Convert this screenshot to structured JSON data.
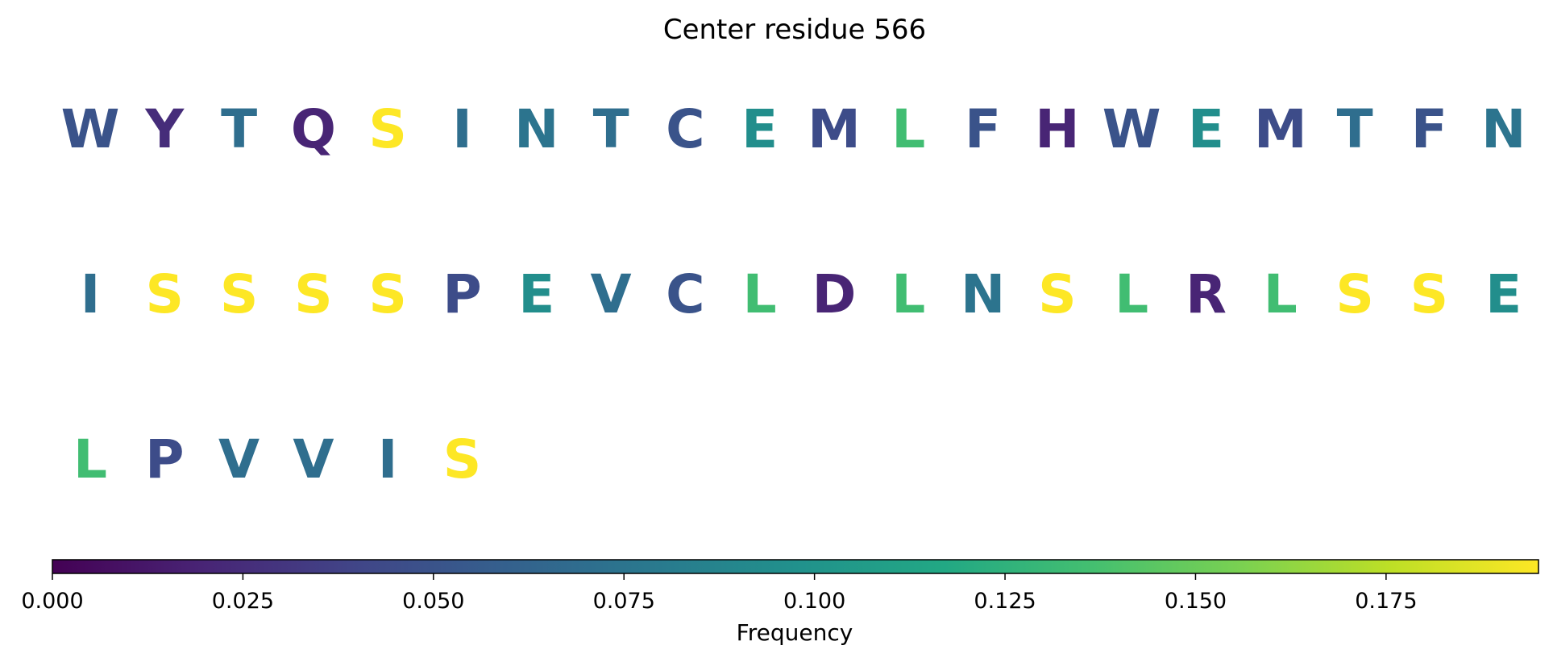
{
  "chart_data": {
    "type": "table",
    "title": "Center residue 566",
    "residues_per_row": 20,
    "residues": [
      {
        "letter": "W",
        "frequency": 0.05
      },
      {
        "letter": "Y",
        "frequency": 0.025
      },
      {
        "letter": "T",
        "frequency": 0.07
      },
      {
        "letter": "Q",
        "frequency": 0.02
      },
      {
        "letter": "S",
        "frequency": 0.195
      },
      {
        "letter": "I",
        "frequency": 0.07
      },
      {
        "letter": "N",
        "frequency": 0.075
      },
      {
        "letter": "T",
        "frequency": 0.07
      },
      {
        "letter": "C",
        "frequency": 0.05
      },
      {
        "letter": "E",
        "frequency": 0.095
      },
      {
        "letter": "M",
        "frequency": 0.045
      },
      {
        "letter": "L",
        "frequency": 0.135
      },
      {
        "letter": "F",
        "frequency": 0.05
      },
      {
        "letter": "H",
        "frequency": 0.02
      },
      {
        "letter": "W",
        "frequency": 0.05
      },
      {
        "letter": "E",
        "frequency": 0.095
      },
      {
        "letter": "M",
        "frequency": 0.045
      },
      {
        "letter": "T",
        "frequency": 0.07
      },
      {
        "letter": "F",
        "frequency": 0.05
      },
      {
        "letter": "N",
        "frequency": 0.075
      },
      {
        "letter": "I",
        "frequency": 0.07
      },
      {
        "letter": "S",
        "frequency": 0.195
      },
      {
        "letter": "S",
        "frequency": 0.195
      },
      {
        "letter": "S",
        "frequency": 0.195
      },
      {
        "letter": "S",
        "frequency": 0.195
      },
      {
        "letter": "P",
        "frequency": 0.045
      },
      {
        "letter": "E",
        "frequency": 0.095
      },
      {
        "letter": "V",
        "frequency": 0.07
      },
      {
        "letter": "C",
        "frequency": 0.05
      },
      {
        "letter": "L",
        "frequency": 0.135
      },
      {
        "letter": "D",
        "frequency": 0.02
      },
      {
        "letter": "L",
        "frequency": 0.135
      },
      {
        "letter": "N",
        "frequency": 0.075
      },
      {
        "letter": "S",
        "frequency": 0.195
      },
      {
        "letter": "L",
        "frequency": 0.135
      },
      {
        "letter": "R",
        "frequency": 0.02
      },
      {
        "letter": "L",
        "frequency": 0.135
      },
      {
        "letter": "S",
        "frequency": 0.195
      },
      {
        "letter": "S",
        "frequency": 0.195
      },
      {
        "letter": "E",
        "frequency": 0.095
      },
      {
        "letter": "L",
        "frequency": 0.135
      },
      {
        "letter": "P",
        "frequency": 0.045
      },
      {
        "letter": "V",
        "frequency": 0.07
      },
      {
        "letter": "V",
        "frequency": 0.07
      },
      {
        "letter": "I",
        "frequency": 0.07
      },
      {
        "letter": "S",
        "frequency": 0.195
      }
    ],
    "colorbar": {
      "colormap": "viridis",
      "label": "Frequency",
      "range": [
        0,
        0.195
      ],
      "ticks": [
        0.0,
        0.025,
        0.05,
        0.075,
        0.1,
        0.125,
        0.15,
        0.175
      ],
      "tick_labels": [
        "0.000",
        "0.025",
        "0.050",
        "0.075",
        "0.100",
        "0.125",
        "0.150",
        "0.175"
      ],
      "orientation": "horizontal",
      "placement": "bottom"
    }
  }
}
